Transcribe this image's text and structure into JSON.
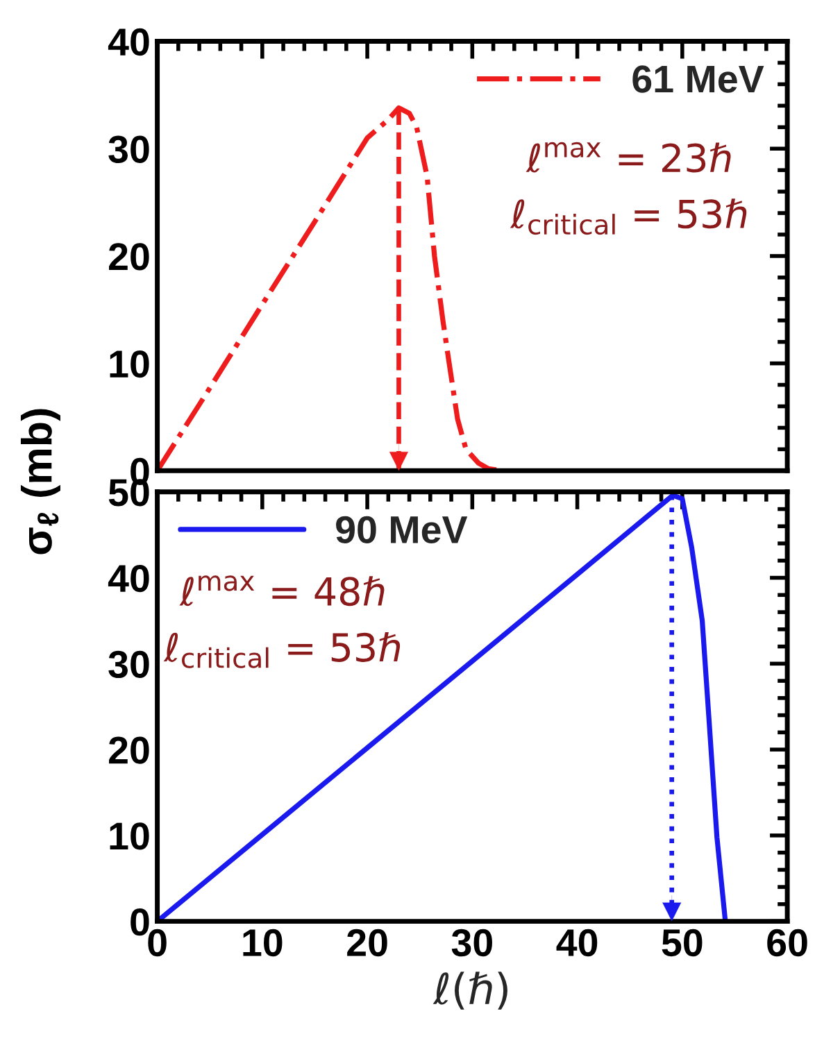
{
  "chart_data": [
    {
      "type": "line",
      "xlim": [
        0,
        60
      ],
      "xticks": [
        0,
        10,
        20,
        30,
        40,
        50,
        60
      ],
      "ylim": [
        0,
        40
      ],
      "yticks": [
        0,
        10,
        20,
        30,
        40
      ],
      "tick_labels": "y",
      "legend": "top right",
      "grid": false,
      "series": [
        {
          "name": "61 MeV",
          "color": "#ee1c1c",
          "line_style": "dashdot",
          "x": [
            0,
            5,
            10,
            15,
            20,
            22,
            23,
            24,
            24.7,
            25.7,
            26.4,
            27.2,
            27.8,
            28.6,
            29.4,
            30.6,
            31.5,
            32.8
          ],
          "values": [
            0,
            7.7,
            15.5,
            23.2,
            31,
            32.7,
            33.8,
            33.3,
            32,
            27.4,
            20,
            14,
            10,
            4.8,
            2,
            0.7,
            0.2,
            0
          ]
        }
      ],
      "ref_lines": [
        {
          "axis": "x",
          "value": 23,
          "label": null,
          "color": "#ee1c1c",
          "line_style": "dashed"
        }
      ],
      "annotations": [
        "ℓ$^{max}$ = 23ℏ",
        "ℓ$_{critical}$ = 53ℏ"
      ]
    },
    {
      "type": "line",
      "xlim": [
        0,
        60
      ],
      "xticks": [
        0,
        10,
        20,
        30,
        40,
        50,
        60
      ],
      "ylim": [
        0,
        50
      ],
      "yticks": [
        0,
        10,
        20,
        30,
        40,
        50
      ],
      "legend": "top left",
      "grid": false,
      "xlabel": "ℓ(ℏ)",
      "ylabel": "σ$_{ℓ}$ (mb)",
      "series": [
        {
          "name": "90 MeV",
          "color": "#1a1aee",
          "line_style": "solid",
          "x": [
            0,
            10,
            20,
            30,
            40,
            48,
            49.1,
            50,
            50.9,
            51.9,
            52.6,
            53.3,
            54.1
          ],
          "values": [
            0,
            10.1,
            20.2,
            30.3,
            40.4,
            48.5,
            49.6,
            49.2,
            43.5,
            35,
            22.5,
            9.8,
            0
          ]
        }
      ],
      "ref_lines": [
        {
          "axis": "x",
          "value": 49,
          "label": null,
          "color": "#1a1aee",
          "line_style": "dotted"
        }
      ],
      "annotations": [
        "ℓ$^{max}$ = 48ℏ",
        "ℓ$_{critical}$ = 53ℏ"
      ]
    }
  ]
}
